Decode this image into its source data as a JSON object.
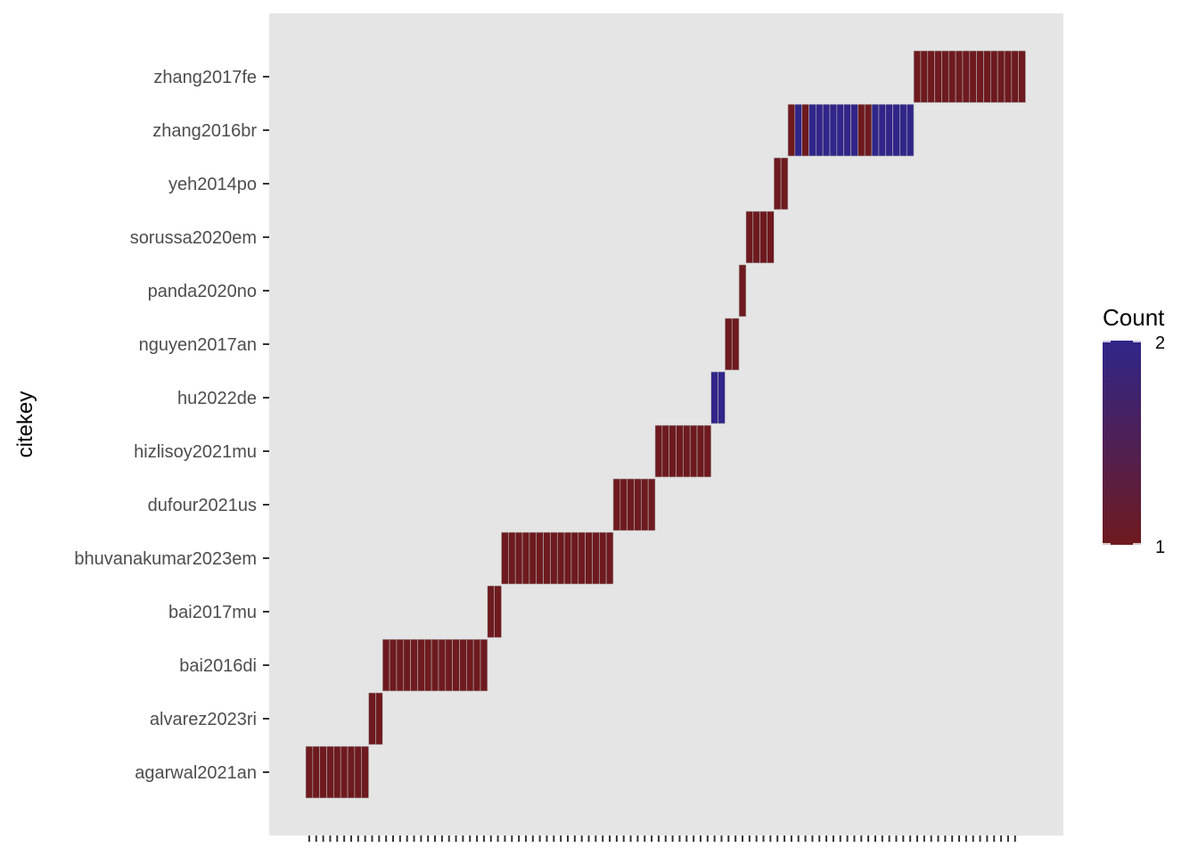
{
  "chart_data": {
    "type": "heatmap",
    "title": "",
    "xlabel": "",
    "ylabel": "citekey",
    "x_tick_count": 102,
    "x_tick_labels": [],
    "grid": false,
    "legend_placement": "right",
    "categories": [
      "agarwal2021an",
      "alvarez2023ri",
      "bai2016di",
      "bai2017mu",
      "bhuvanakumar2023em",
      "dufour2021us",
      "hizlisoy2021mu",
      "hu2022de",
      "nguyen2017an",
      "panda2020no",
      "sorussa2020em",
      "yeh2014po",
      "zhang2016br",
      "zhang2017fe"
    ],
    "cells": [
      {
        "citekey": "agarwal2021an",
        "counts": [
          1,
          1,
          1,
          1,
          1,
          1,
          1,
          1,
          1
        ]
      },
      {
        "citekey": "alvarez2023ri",
        "counts": [
          1,
          1
        ]
      },
      {
        "citekey": "bai2016di",
        "counts": [
          1,
          1,
          1,
          1,
          1,
          1,
          1,
          1,
          1,
          1,
          1,
          1,
          1,
          1,
          1
        ]
      },
      {
        "citekey": "bai2017mu",
        "counts": [
          1,
          1
        ]
      },
      {
        "citekey": "bhuvanakumar2023em",
        "counts": [
          1,
          1,
          1,
          1,
          1,
          1,
          1,
          1,
          1,
          1,
          1,
          1,
          1,
          1,
          1,
          1
        ]
      },
      {
        "citekey": "dufour2021us",
        "counts": [
          1,
          1,
          1,
          1,
          1,
          1
        ]
      },
      {
        "citekey": "hizlisoy2021mu",
        "counts": [
          1,
          1,
          1,
          1,
          1,
          1,
          1,
          1
        ]
      },
      {
        "citekey": "hu2022de",
        "counts": [
          2,
          2
        ]
      },
      {
        "citekey": "nguyen2017an",
        "counts": [
          1,
          1
        ]
      },
      {
        "citekey": "panda2020no",
        "counts": [
          1
        ]
      },
      {
        "citekey": "sorussa2020em",
        "counts": [
          1,
          1,
          1,
          1
        ]
      },
      {
        "citekey": "yeh2014po",
        "counts": [
          1,
          1
        ]
      },
      {
        "citekey": "zhang2016br",
        "counts": [
          1,
          2,
          1,
          2,
          2,
          2,
          2,
          2,
          2,
          2,
          1,
          1,
          2,
          2,
          2,
          2,
          2,
          2
        ]
      },
      {
        "citekey": "zhang2017fe",
        "counts": [
          1,
          1,
          1,
          1,
          1,
          1,
          1,
          1,
          1,
          1,
          1,
          1,
          1,
          1,
          1,
          1
        ]
      }
    ],
    "legend": {
      "title": "Count",
      "min": 1,
      "max": 2,
      "tick_labels": [
        "2",
        "1"
      ],
      "low_color": "#6e1a1e",
      "high_color": "#30268a"
    },
    "panel_color": "#e5e5e5",
    "tile_border_color": "#b8b8b8"
  }
}
